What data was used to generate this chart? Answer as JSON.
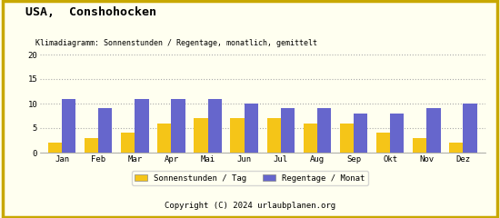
{
  "title": "USA,  Conshohocken",
  "subtitle": "Klimadiagramm: Sonnenstunden / Regentage, monatlich, gemittelt",
  "months": [
    "Jan",
    "Feb",
    "Mar",
    "Apr",
    "Mai",
    "Jun",
    "Jul",
    "Aug",
    "Sep",
    "Okt",
    "Nov",
    "Dez"
  ],
  "sonnenstunden": [
    2,
    3,
    4,
    6,
    7,
    7,
    7,
    6,
    6,
    4,
    3,
    2
  ],
  "regentage": [
    11,
    9,
    11,
    11,
    11,
    10,
    9,
    9,
    8,
    8,
    9,
    10
  ],
  "sun_color": "#f5c518",
  "rain_color": "#6666cc",
  "background_color": "#fffff0",
  "border_color": "#c8a800",
  "ylim": [
    0,
    20
  ],
  "yticks": [
    0,
    5,
    10,
    15,
    20
  ],
  "legend_sun": "Sonnenstunden / Tag",
  "legend_rain": "Regentage / Monat",
  "copyright": "Copyright (C) 2024 urlaubplanen.org",
  "copyright_bg": "#d4a800",
  "title_fontsize": 9.5,
  "subtitle_fontsize": 6.0,
  "axis_fontsize": 6.5,
  "legend_fontsize": 6.5,
  "copyright_fontsize": 6.5
}
